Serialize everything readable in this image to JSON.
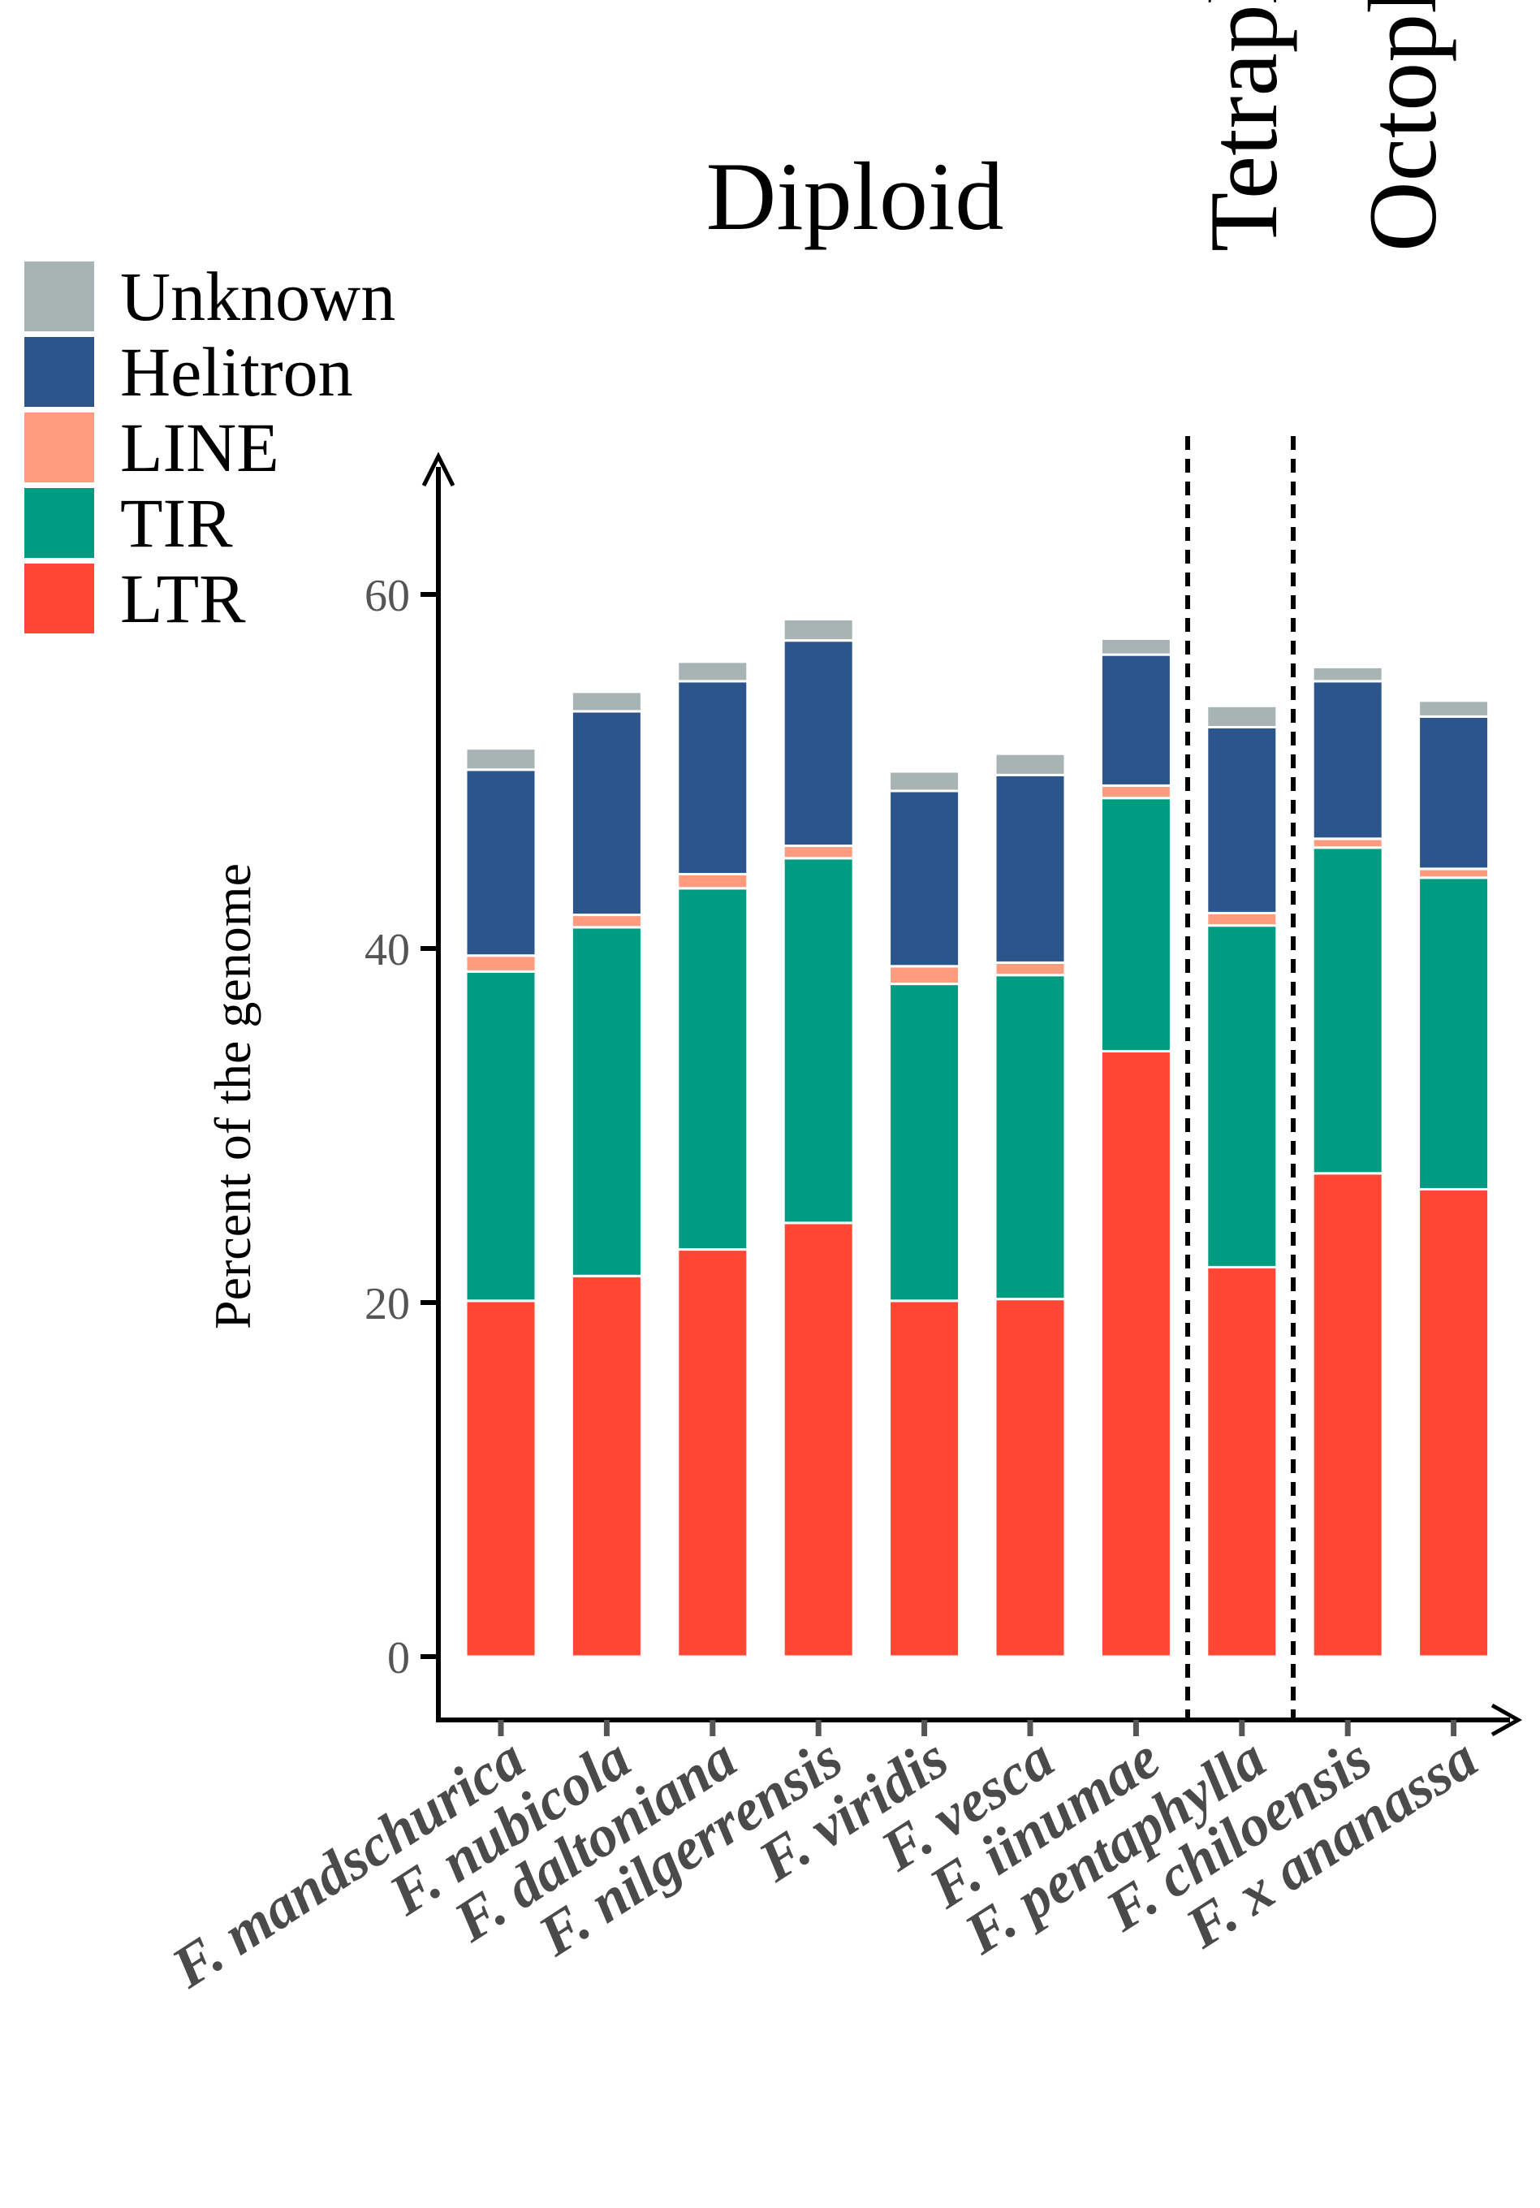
{
  "chart_data": {
    "type": "bar",
    "stacked": true,
    "title": "",
    "xlabel": "",
    "ylabel": "Percent of the genome",
    "ylim": [
      0,
      70
    ],
    "yticks": [
      0,
      20,
      40,
      60
    ],
    "categories": [
      "F. mandschurica",
      "F. nubicola",
      "F. daltoniana",
      "F. nilgerrensis",
      "F. viridis",
      "F. vesca",
      "F. iinumae",
      "F. pentaphylla",
      "F. chiloensis",
      "F. x ananassa"
    ],
    "series": [
      {
        "name": "LTR",
        "color": "#FF4733",
        "values": [
          20.1,
          21.5,
          23.0,
          24.5,
          20.1,
          20.2,
          34.2,
          22.0,
          27.3,
          26.4
        ]
      },
      {
        "name": "TIR",
        "color": "#009C82",
        "values": [
          18.6,
          19.7,
          20.4,
          20.6,
          17.9,
          18.3,
          14.3,
          19.3,
          18.4,
          17.6
        ]
      },
      {
        "name": "LINE",
        "color": "#FF9B7E",
        "values": [
          0.9,
          0.7,
          0.8,
          0.7,
          1.0,
          0.7,
          0.7,
          0.7,
          0.5,
          0.5
        ]
      },
      {
        "name": "Helitron",
        "color": "#2B558B",
        "values": [
          10.5,
          11.5,
          10.9,
          11.6,
          9.9,
          10.6,
          7.4,
          10.5,
          8.9,
          8.6
        ]
      },
      {
        "name": "Unknown",
        "color": "#A8B4B4",
        "values": [
          1.2,
          1.1,
          1.1,
          1.2,
          1.1,
          1.2,
          0.9,
          1.2,
          0.8,
          0.9
        ]
      }
    ],
    "legend": {
      "order": [
        "Unknown",
        "Helitron",
        "LINE",
        "TIR",
        "LTR"
      ],
      "placement": "top-left"
    },
    "groups": [
      {
        "label": "Diploid",
        "categories": [
          "F. mandschurica",
          "F. nubicola",
          "F. daltoniana",
          "F. nilgerrensis",
          "F. viridis",
          "F. vesca",
          "F. iinumae"
        ]
      },
      {
        "label": "Tetraploid",
        "categories": [
          "F. pentaphylla"
        ]
      },
      {
        "label": "Octoploid",
        "categories": [
          "F. chiloensis",
          "F. x ananassa"
        ]
      }
    ]
  }
}
